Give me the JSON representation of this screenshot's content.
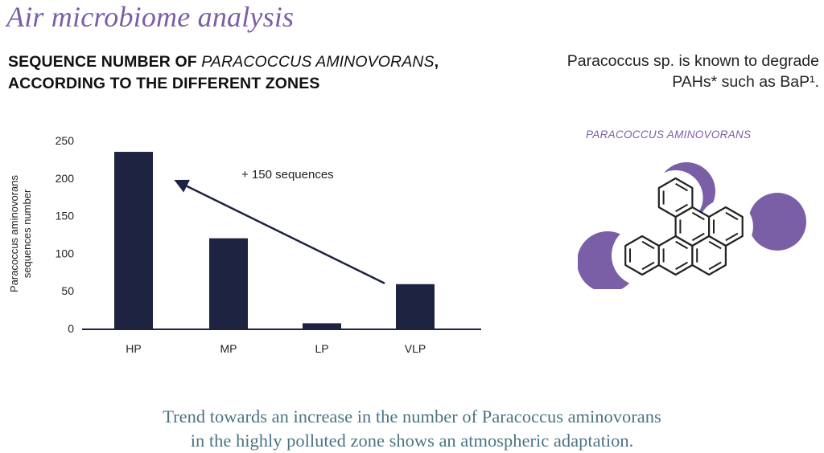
{
  "header": {
    "title": "Air microbiome analysis",
    "chart_heading_line1_start": "SEQUENCE NUMBER OF ",
    "chart_heading_line1_italic": "PARACOCCUS AMINOVORANS",
    "chart_heading_line1_end": ",",
    "chart_heading_line2": "ACCORDING TO THE DIFFERENT ZONES"
  },
  "side_note": {
    "line1": "Paracoccus sp. is known to degrade",
    "line2": "PAHs* such as BaP¹."
  },
  "molecule": {
    "label": "PARACOCCUS AMINOVORANS",
    "ring_color": "#222222",
    "accent_color": "#7b5fa6"
  },
  "conclusion": {
    "line1": "Trend towards an increase in the number of Paracoccus aminovorans",
    "line2": "in the highly polluted zone shows an atmospheric adaptation."
  },
  "chart_data": {
    "type": "bar",
    "categories": [
      "HP",
      "MP",
      "LP",
      "VLP"
    ],
    "values": [
      235,
      120,
      7,
      59
    ],
    "ylabel_line1": "Paracoccus aminovorans",
    "ylabel_line2": "sequences number",
    "xlabel": "",
    "ylim": [
      0,
      250
    ],
    "yticks": [
      0,
      50,
      100,
      150,
      200,
      250
    ],
    "bar_color": "#1d2340",
    "grid": false,
    "annotation": {
      "text": "+ 150 sequences",
      "arrow_from_category": "VLP",
      "arrow_to_category": "HP",
      "arrow_from_value": 58,
      "arrow_to_value": 200
    }
  }
}
